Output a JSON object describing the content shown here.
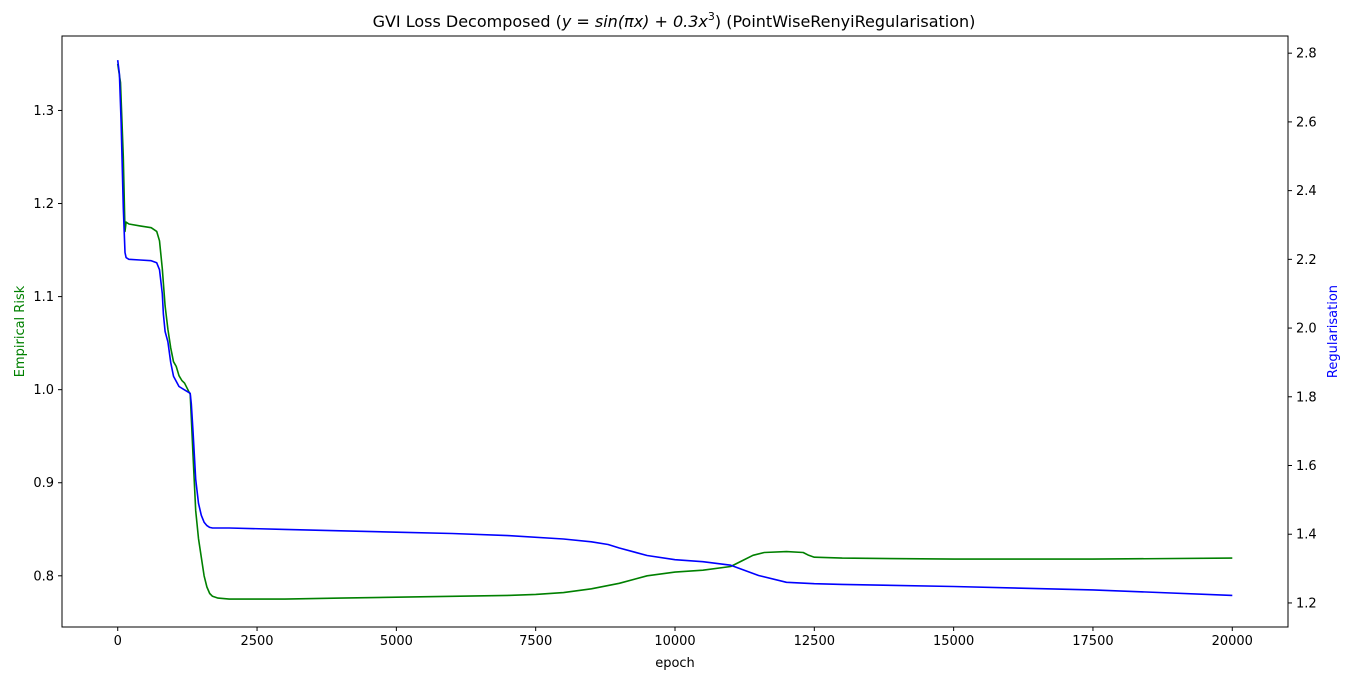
{
  "chart_data": {
    "type": "line",
    "title": "GVI Loss Decomposed ($y=\\sin(\\pi x)+0.3x^3$) (PointWiseRenyiRegularisation)",
    "title_parts": {
      "prefix": "GVI Loss Decomposed (",
      "formula": "y = sin(πx) + 0.3x",
      "exponent": "3",
      "suffix": ") (PointWiseRenyiRegularisation)"
    },
    "xlabel": "epoch",
    "ylabel_left": "Empirical Risk",
    "ylabel_right": "Regularisation",
    "xlim": [
      -1000,
      21000
    ],
    "ylim_left": [
      0.745,
      1.38
    ],
    "ylim_right": [
      1.13,
      2.85
    ],
    "x_ticks": [
      0,
      2500,
      5000,
      7500,
      10000,
      12500,
      15000,
      17500,
      20000
    ],
    "y_left_ticks": [
      0.8,
      0.9,
      1.0,
      1.1,
      1.2,
      1.3
    ],
    "y_left_tick_labels": [
      "0.8",
      "0.9",
      "1.0",
      "1.1",
      "1.2",
      "1.3"
    ],
    "y_right_ticks": [
      1.2,
      1.4,
      1.6,
      1.8,
      2.0,
      2.2,
      2.4,
      2.6,
      2.8
    ],
    "y_right_tick_labels": [
      "1.2",
      "1.4",
      "1.6",
      "1.8",
      "2.0",
      "2.2",
      "2.4",
      "2.6",
      "2.8"
    ],
    "grid": false,
    "legend": "none",
    "series": [
      {
        "axis": "left",
        "color": "#008000",
        "x": [
          0,
          50,
          100,
          130,
          150,
          200,
          400,
          600,
          700,
          750,
          800,
          850,
          900,
          950,
          1000,
          1050,
          1100,
          1150,
          1200,
          1300,
          1320,
          1350,
          1400,
          1450,
          1500,
          1550,
          1600,
          1650,
          1700,
          1800,
          2000,
          2500,
          3000,
          4000,
          5000,
          6000,
          7000,
          7500,
          8000,
          8500,
          9000,
          9500,
          10000,
          10500,
          11000,
          11200,
          11400,
          11600,
          12000,
          12300,
          12400,
          12500,
          13000,
          15000,
          17500,
          20000
        ],
        "values": [
          1.35,
          1.33,
          1.25,
          1.17,
          1.18,
          1.178,
          1.176,
          1.174,
          1.17,
          1.16,
          1.13,
          1.09,
          1.065,
          1.045,
          1.03,
          1.025,
          1.015,
          1.01,
          1.007,
          0.995,
          0.97,
          0.93,
          0.87,
          0.84,
          0.82,
          0.8,
          0.788,
          0.781,
          0.778,
          0.776,
          0.775,
          0.775,
          0.775,
          0.776,
          0.777,
          0.778,
          0.779,
          0.78,
          0.782,
          0.786,
          0.792,
          0.8,
          0.804,
          0.806,
          0.81,
          0.816,
          0.822,
          0.825,
          0.826,
          0.825,
          0.822,
          0.82,
          0.819,
          0.818,
          0.818,
          0.819
        ]
      },
      {
        "axis": "right",
        "color": "#0000ff",
        "x": [
          0,
          30,
          60,
          100,
          130,
          150,
          200,
          400,
          600,
          700,
          750,
          800,
          820,
          850,
          900,
          950,
          1000,
          1100,
          1200,
          1300,
          1320,
          1350,
          1400,
          1450,
          1500,
          1550,
          1600,
          1650,
          1700,
          2000,
          3000,
          4000,
          5000,
          6000,
          7000,
          8000,
          8500,
          8800,
          9000,
          9500,
          10000,
          10500,
          11000,
          11500,
          12000,
          12500,
          13000,
          15000,
          17500,
          20000
        ],
        "values": [
          2.78,
          2.74,
          2.6,
          2.35,
          2.22,
          2.205,
          2.2,
          2.198,
          2.196,
          2.19,
          2.17,
          2.1,
          2.04,
          1.99,
          1.96,
          1.9,
          1.86,
          1.83,
          1.82,
          1.81,
          1.78,
          1.7,
          1.56,
          1.49,
          1.455,
          1.435,
          1.425,
          1.42,
          1.418,
          1.418,
          1.414,
          1.41,
          1.406,
          1.402,
          1.396,
          1.386,
          1.378,
          1.37,
          1.36,
          1.338,
          1.326,
          1.32,
          1.31,
          1.28,
          1.26,
          1.256,
          1.254,
          1.248,
          1.238,
          1.222
        ]
      }
    ]
  }
}
